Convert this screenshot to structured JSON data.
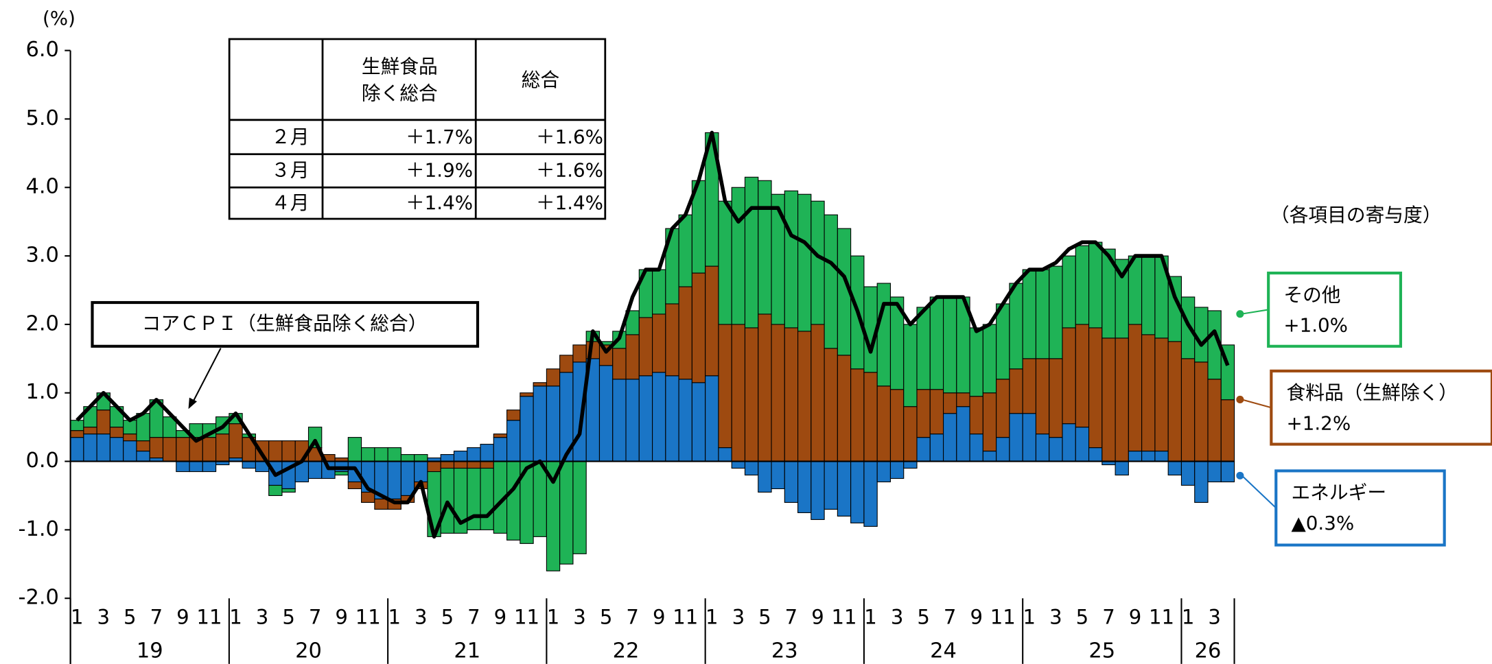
{
  "chart_data": {
    "type": "stacked_bar_line",
    "ylabel": "(%)",
    "ylim": [
      -2,
      6
    ],
    "yticks": [
      {
        "value": 6,
        "label": "6.0"
      },
      {
        "value": 5,
        "label": "5.0"
      },
      {
        "value": 4,
        "label": "4.0"
      },
      {
        "value": 3,
        "label": "3.0"
      },
      {
        "value": 2,
        "label": "2.0"
      },
      {
        "value": 1,
        "label": "1.0"
      },
      {
        "value": 0,
        "label": "0.0"
      },
      {
        "value": -1,
        "label": "-1.0"
      },
      {
        "value": -2,
        "label": "-2.0"
      }
    ],
    "categories": [
      "1",
      null,
      "3",
      null,
      "5",
      null,
      "7",
      null,
      "9",
      null,
      "11",
      null,
      "1",
      null,
      "3",
      null,
      "5",
      null,
      "7",
      null,
      "9",
      null,
      "11",
      null,
      "1",
      null,
      "3",
      null,
      "5",
      null,
      "7",
      null,
      "9",
      null,
      "11",
      null,
      "1",
      null,
      "3",
      null,
      "5",
      null,
      "7",
      null,
      "9",
      null,
      "11",
      null,
      "1",
      null,
      "3",
      null,
      "5",
      null,
      "7",
      null,
      "9",
      null,
      "11",
      null,
      "1",
      null,
      "3",
      null,
      "5",
      null,
      "7",
      null,
      "9",
      null,
      "11",
      null,
      "1",
      null,
      "3",
      null,
      "5",
      null,
      "7",
      null,
      "9",
      null,
      "11",
      null,
      "1",
      null,
      "3",
      null
    ],
    "years": [
      "19",
      "20",
      "21",
      "22",
      "23",
      "24",
      "25",
      "26"
    ],
    "series": [
      {
        "name": "エネルギー",
        "label": "▲0.3%",
        "color": "#1a75c6",
        "values": [
          0.35,
          0.4,
          0.4,
          0.35,
          0.3,
          0.15,
          0.05,
          0,
          -0.15,
          -0.15,
          -0.15,
          -0.05,
          0.05,
          -0.1,
          -0.15,
          -0.35,
          -0.4,
          -0.3,
          -0.25,
          -0.25,
          -0.15,
          -0.3,
          -0.45,
          -0.55,
          -0.55,
          -0.5,
          -0.3,
          0.05,
          0.1,
          0.15,
          0.2,
          0.25,
          0.35,
          0.6,
          0.95,
          1.1,
          1.1,
          1.3,
          1.45,
          1.5,
          1.4,
          1.2,
          1.2,
          1.25,
          1.3,
          1.25,
          1.2,
          1.15,
          1.25,
          0.2,
          -0.1,
          -0.2,
          -0.45,
          -0.4,
          -0.6,
          -0.75,
          -0.85,
          -0.7,
          -0.8,
          -0.9,
          -0.95,
          -0.3,
          -0.25,
          -0.1,
          0.35,
          0.4,
          0.7,
          0.8,
          0.4,
          0.15,
          0.35,
          0.7,
          0.7,
          0.4,
          0.35,
          0.55,
          0.5,
          0.2,
          -0.05,
          -0.2,
          0.15,
          0.15,
          0.15,
          -0.2,
          -0.35,
          -0.6,
          -0.3,
          -0.3
        ]
      },
      {
        "name": "食料品（生鮮除く）",
        "label": "+1.2%",
        "color": "#9e4a10",
        "values": [
          0.1,
          0.1,
          0.35,
          0.15,
          0.1,
          0.15,
          0.3,
          0.35,
          0.35,
          0.35,
          0.35,
          0.4,
          0.5,
          0.35,
          0.3,
          0.3,
          0.3,
          0.3,
          0.2,
          0.1,
          0.05,
          -0.1,
          -0.15,
          -0.15,
          -0.15,
          -0.1,
          -0.1,
          -0.15,
          -0.1,
          -0.1,
          -0.1,
          -0.1,
          0.05,
          0.15,
          0.05,
          0.05,
          0.25,
          0.25,
          0.25,
          0.25,
          0.3,
          0.45,
          0.65,
          0.85,
          0.85,
          1.05,
          1.35,
          1.6,
          1.6,
          1.8,
          2.0,
          1.95,
          2.15,
          2.0,
          1.95,
          1.9,
          2.0,
          1.65,
          1.55,
          1.35,
          1.3,
          1.1,
          1.05,
          0.8,
          0.7,
          0.65,
          0.3,
          0.2,
          0.55,
          0.85,
          0.85,
          0.65,
          0.8,
          1.1,
          1.15,
          1.4,
          1.5,
          1.75,
          1.8,
          1.8,
          1.85,
          1.7,
          1.65,
          1.75,
          1.5,
          1.45,
          1.2,
          0.9
        ]
      },
      {
        "name": "その他",
        "label": "+1.0%",
        "color": "#1fb356",
        "values": [
          0.15,
          0.3,
          0.25,
          0.3,
          0.2,
          0.4,
          0.55,
          0.3,
          0.1,
          0.2,
          0.2,
          0.25,
          0.15,
          0.05,
          0,
          -0.15,
          -0.05,
          0,
          0.3,
          0,
          -0.05,
          0.35,
          0.2,
          0.2,
          0.2,
          0.1,
          0.1,
          -0.95,
          -0.95,
          -0.95,
          -0.9,
          -0.9,
          -1.05,
          -1.15,
          -1.2,
          -1.1,
          -1.6,
          -1.5,
          -1.35,
          0.15,
          0.05,
          0.25,
          0.35,
          0.7,
          0.65,
          1.1,
          1.05,
          1.35,
          1.95,
          1.8,
          2.0,
          2.2,
          1.95,
          1.9,
          2.0,
          2.0,
          1.8,
          1.95,
          1.85,
          1.65,
          1.25,
          1.5,
          1.35,
          1.2,
          1.2,
          1.35,
          1.4,
          1.4,
          1.0,
          1.0,
          1.1,
          1.25,
          1.3,
          1.3,
          1.35,
          1.05,
          1.15,
          1.25,
          1.3,
          1.15,
          1.0,
          1.15,
          1.2,
          0.95,
          0.9,
          0.8,
          1.0,
          0.8
        ]
      }
    ],
    "line": {
      "name": "コアＣＰＩ（生鮮食品除く総合）",
      "color": "#000000",
      "values": [
        0.6,
        0.8,
        1.0,
        0.8,
        0.6,
        0.7,
        0.9,
        0.7,
        0.5,
        0.3,
        0.4,
        0.5,
        0.7,
        0.4,
        0.1,
        -0.2,
        -0.1,
        0.0,
        0.3,
        -0.1,
        -0.1,
        -0.1,
        -0.4,
        -0.5,
        -0.6,
        -0.6,
        -0.3,
        -1.1,
        -0.6,
        -0.9,
        -0.8,
        -0.8,
        -0.6,
        -0.4,
        -0.1,
        0.0,
        -0.3,
        0.1,
        0.4,
        1.9,
        1.6,
        1.8,
        2.4,
        2.8,
        2.8,
        3.4,
        3.6,
        4.1,
        4.8,
        3.8,
        3.5,
        3.7,
        3.7,
        3.7,
        3.3,
        3.2,
        3.0,
        2.9,
        2.7,
        2.2,
        1.6,
        2.3,
        2.3,
        2.0,
        2.2,
        2.4,
        2.4,
        2.4,
        1.9,
        2.0,
        2.3,
        2.6,
        2.8,
        2.8,
        2.9,
        3.1,
        3.2,
        3.2,
        3.0,
        2.7,
        3.0,
        3.0,
        3.0,
        2.4,
        2.0,
        1.7,
        1.9,
        1.4
      ]
    },
    "annotation": "（各項目の寄与度）",
    "table": {
      "header": [
        [
          "生鮮食品",
          "除く総合"
        ],
        [
          "総合"
        ]
      ],
      "rows": [
        [
          "２月",
          "＋1.7%",
          "＋1.6%"
        ],
        [
          "３月",
          "＋1.9%",
          "＋1.6%"
        ],
        [
          "４月",
          "＋1.4%",
          "＋1.4%"
        ]
      ]
    }
  }
}
